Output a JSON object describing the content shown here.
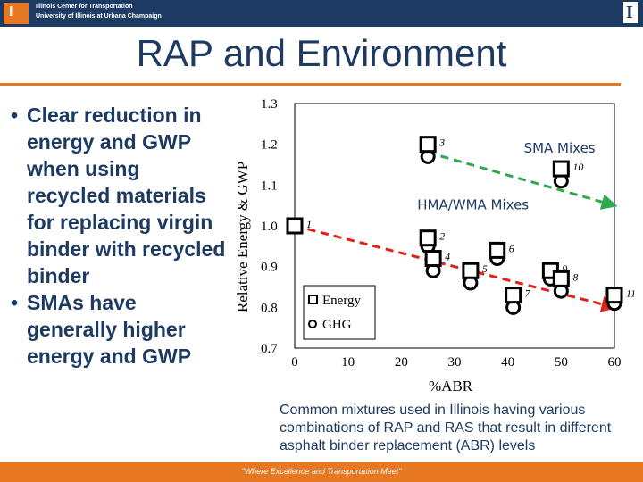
{
  "header": {
    "org_line1": "Illinois Center for Transportation",
    "org_line2": "University of Illinois at Urbana Champaign",
    "logo_left_letter": "I",
    "logo_right_letter": "I"
  },
  "slide": {
    "title": "RAP and Environment",
    "bullets": [
      "Clear reduction in energy and GWP when using recycled materials for replacing virgin binder with recycled binder",
      "SMAs have generally higher energy and GWP"
    ],
    "caption": "Common mixtures used in Illinois having various combinations of RAP and RAS that result in different asphalt binder replacement (ABR) levels"
  },
  "footer": {
    "tagline": "\"Where Excellence and Transportation Meet\""
  },
  "colors": {
    "navy": "#1d3a63",
    "orange": "#e87722",
    "green": "#2fa84f",
    "red": "#e0231a"
  },
  "chart_data": {
    "type": "scatter",
    "xlabel": "%ABR",
    "ylabel": "Relative Energy & GWP",
    "xlim": [
      0,
      60
    ],
    "ylim": [
      0.7,
      1.3
    ],
    "xticks": [
      0,
      10,
      20,
      30,
      40,
      50,
      60
    ],
    "yticks": [
      0.7,
      0.8,
      0.9,
      1.0,
      1.1,
      1.2,
      1.3
    ],
    "ytick_labels": [
      "0.7",
      "0.8",
      "0.9",
      "1.0",
      "1.1",
      "1.2",
      "1.3"
    ],
    "legend": {
      "position": "bottom-left",
      "entries": [
        "Energy",
        "GHG"
      ]
    },
    "annotations": [
      {
        "text": "SMA Mixes",
        "x": 43,
        "y": 1.18,
        "color": "#1d3a63"
      },
      {
        "text": "HMA/WMA Mixes",
        "x": 23,
        "y": 1.04,
        "color": "#1d3a63"
      }
    ],
    "series": [
      {
        "name": "Energy",
        "marker": "square",
        "points": [
          {
            "label": "1",
            "x": 0,
            "y": 1.0
          },
          {
            "label": "3",
            "x": 25,
            "y": 1.2
          },
          {
            "label": "10",
            "x": 50,
            "y": 1.14
          },
          {
            "label": "2",
            "x": 25,
            "y": 0.97
          },
          {
            "label": "4",
            "x": 26,
            "y": 0.92
          },
          {
            "label": "6",
            "x": 38,
            "y": 0.94
          },
          {
            "label": "5",
            "x": 33,
            "y": 0.89
          },
          {
            "label": "9",
            "x": 48,
            "y": 0.89
          },
          {
            "label": "8",
            "x": 50,
            "y": 0.87
          },
          {
            "label": "7",
            "x": 41,
            "y": 0.83
          },
          {
            "label": "11",
            "x": 60,
            "y": 0.83
          }
        ]
      },
      {
        "name": "GHG",
        "marker": "circle",
        "points": [
          {
            "label": "1",
            "x": 0,
            "y": 1.0
          },
          {
            "label": "3",
            "x": 25,
            "y": 1.17
          },
          {
            "label": "10",
            "x": 50,
            "y": 1.11
          },
          {
            "label": "2",
            "x": 25,
            "y": 0.95
          },
          {
            "label": "4",
            "x": 26,
            "y": 0.89
          },
          {
            "label": "6",
            "x": 38,
            "y": 0.92
          },
          {
            "label": "5",
            "x": 33,
            "y": 0.86
          },
          {
            "label": "9",
            "x": 48,
            "y": 0.87
          },
          {
            "label": "8",
            "x": 50,
            "y": 0.84
          },
          {
            "label": "7",
            "x": 41,
            "y": 0.8
          },
          {
            "label": "11",
            "x": 60,
            "y": 0.81
          }
        ]
      }
    ],
    "trendlines": [
      {
        "name": "SMA trend",
        "color": "#2fa84f",
        "x": [
          25,
          60
        ],
        "y": [
          1.18,
          1.05
        ]
      },
      {
        "name": "HMA/WMA trend",
        "color": "#e0231a",
        "x": [
          0,
          60
        ],
        "y": [
          1.0,
          0.8
        ]
      }
    ]
  }
}
